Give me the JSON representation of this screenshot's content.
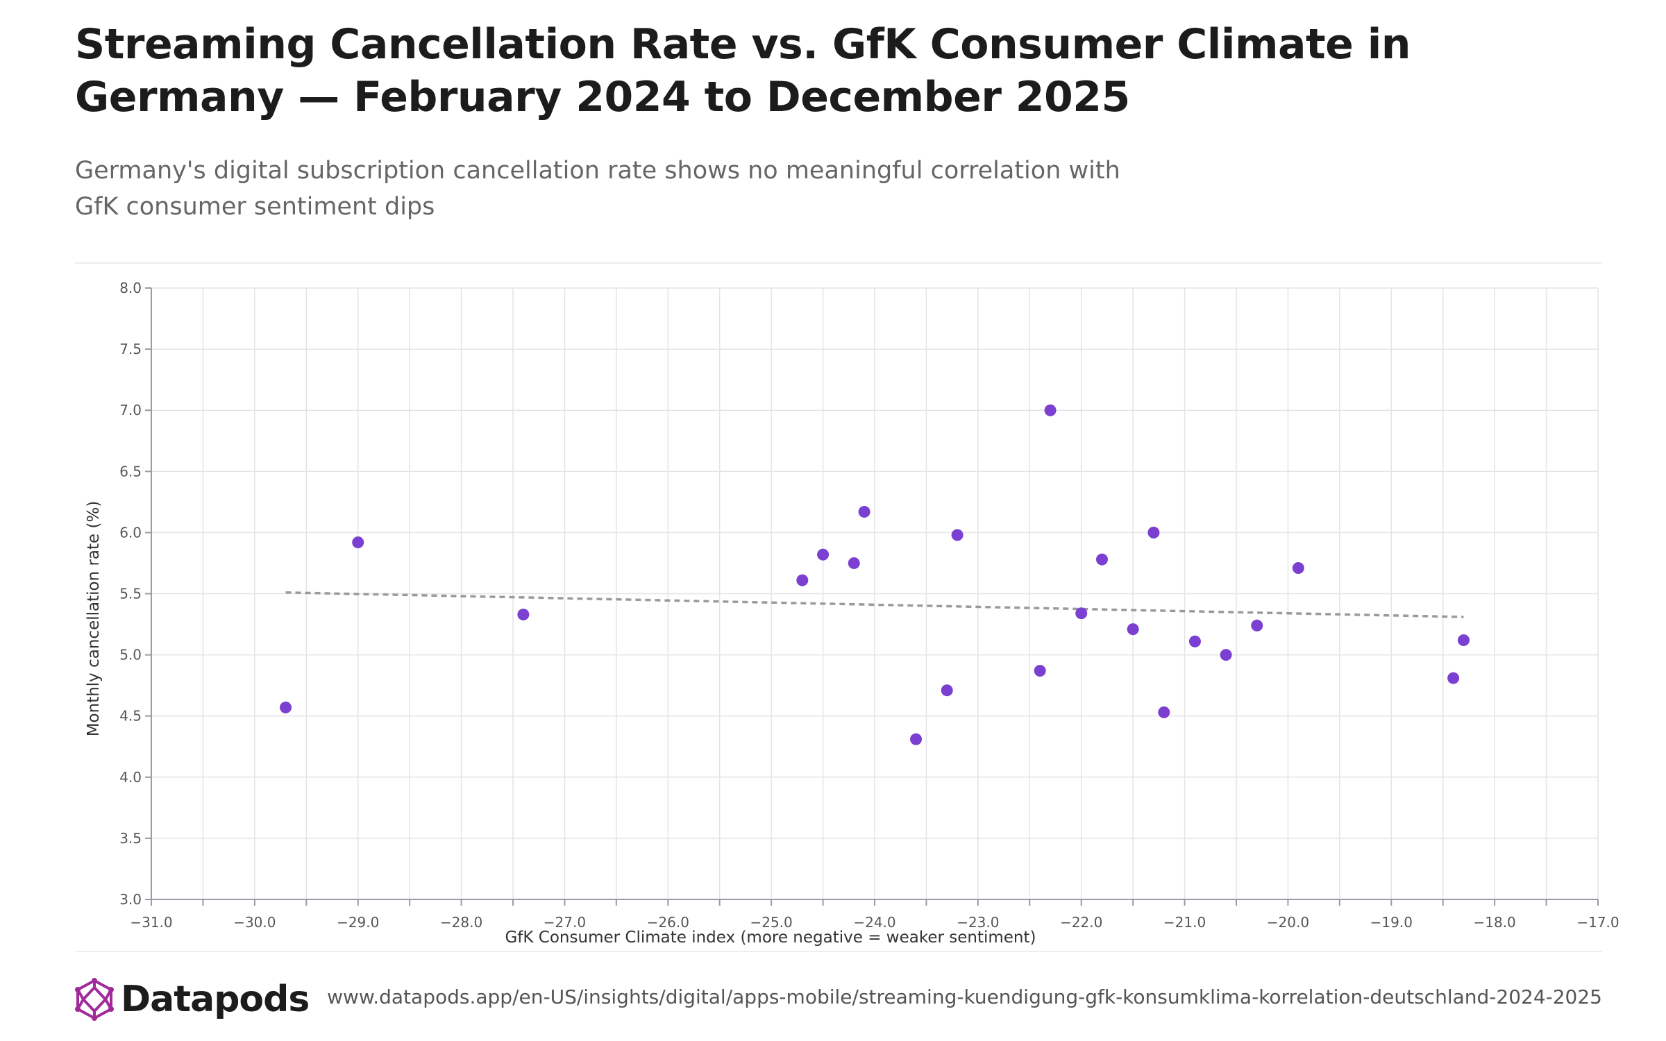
{
  "header": {
    "title": "Streaming Cancellation Rate vs. GfK Consumer Climate in Germany — February 2024 to December 2025",
    "subtitle": "Germany's digital subscription cancellation rate shows no meaningful correlation with GfK consumer sentiment dips"
  },
  "footer": {
    "brand": "Datapods",
    "source_url": "www.datapods.app/en-US/insights/digital/apps-mobile/streaming-kuendigung-gfk-konsumklima-korrelation-deutschland-2024-2025"
  },
  "colors": {
    "point": "#7b3fd1",
    "trend": "#9a9a9a",
    "grid": "#e4e4e8",
    "logo": "#a12a9a"
  },
  "icons": {
    "logo": "datapods-logo-icon"
  },
  "chart_data": {
    "type": "scatter",
    "xlabel": "GfK Consumer Climate index (more negative = weaker sentiment)",
    "ylabel": "Monthly cancellation rate (%)",
    "xlim": [
      -31.0,
      -17.0
    ],
    "ylim": [
      3.0,
      8.0
    ],
    "x_ticks": [
      -31.0,
      -30.0,
      -29.0,
      -28.0,
      -27.0,
      -26.0,
      -25.0,
      -24.0,
      -23.0,
      -22.0,
      -21.0,
      -20.0,
      -19.0,
      -18.0,
      -17.0
    ],
    "x_tick_labels": [
      "−31.0",
      "−30.0",
      "−29.0",
      "−28.0",
      "−27.0",
      "−26.0",
      "−25.0",
      "−24.0",
      "−23.0",
      "−22.0",
      "−21.0",
      "−20.0",
      "−19.0",
      "−18.0",
      "−17.0"
    ],
    "y_ticks": [
      3.0,
      3.5,
      4.0,
      4.5,
      5.0,
      5.5,
      6.0,
      6.5,
      7.0,
      7.5,
      8.0
    ],
    "y_tick_labels": [
      "3.0",
      "3.5",
      "4.0",
      "4.5",
      "5.0",
      "5.5",
      "6.0",
      "6.5",
      "7.0",
      "7.5",
      "8.0"
    ],
    "grid": true,
    "points": [
      {
        "x": -29.7,
        "y": 4.57
      },
      {
        "x": -29.0,
        "y": 5.92
      },
      {
        "x": -27.4,
        "y": 5.33
      },
      {
        "x": -24.7,
        "y": 5.61
      },
      {
        "x": -24.5,
        "y": 5.82
      },
      {
        "x": -24.2,
        "y": 5.75
      },
      {
        "x": -24.1,
        "y": 6.17
      },
      {
        "x": -23.6,
        "y": 4.31
      },
      {
        "x": -23.3,
        "y": 4.71
      },
      {
        "x": -23.2,
        "y": 5.98
      },
      {
        "x": -22.4,
        "y": 4.87
      },
      {
        "x": -22.3,
        "y": 7.0
      },
      {
        "x": -22.0,
        "y": 5.34
      },
      {
        "x": -21.8,
        "y": 5.78
      },
      {
        "x": -21.5,
        "y": 5.21
      },
      {
        "x": -21.3,
        "y": 6.0
      },
      {
        "x": -21.2,
        "y": 4.53
      },
      {
        "x": -20.9,
        "y": 5.11
      },
      {
        "x": -20.6,
        "y": 5.0
      },
      {
        "x": -20.3,
        "y": 5.24
      },
      {
        "x": -19.9,
        "y": 5.71
      },
      {
        "x": -18.4,
        "y": 4.81
      },
      {
        "x": -18.3,
        "y": 5.12
      }
    ],
    "trendline": {
      "style": "dashed",
      "x": [
        -29.7,
        -18.3
      ],
      "y": [
        5.51,
        5.31
      ]
    }
  }
}
